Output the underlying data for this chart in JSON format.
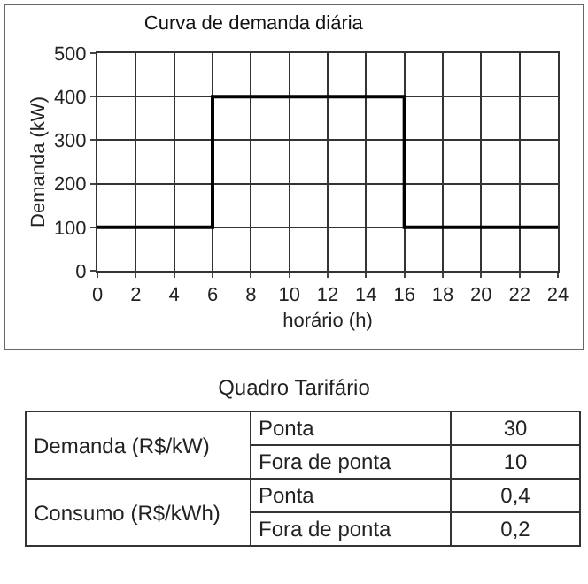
{
  "chart_data": [
    {
      "type": "step",
      "title": "Curva de demanda diária",
      "xlabel": "horário (h)",
      "ylabel": "Demanda (kW)",
      "x": [
        0,
        6,
        16,
        24
      ],
      "values": [
        100,
        400,
        100,
        100
      ],
      "color": "#000000",
      "xlim": [
        0,
        24
      ],
      "xticks": [
        0,
        2,
        4,
        6,
        8,
        10,
        12,
        14,
        16,
        18,
        20,
        22,
        24
      ],
      "ylim": [
        0,
        500
      ],
      "yticks": [
        0,
        100,
        200,
        300,
        400,
        500
      ],
      "grid": true
    },
    {
      "type": "other",
      "title": "Quadro Tarifário",
      "annotations": [
        "Demanda (R$/kW)",
        "Ponta",
        "30",
        "Fora de ponta",
        "10",
        "Consumo (R$/kWh)",
        "Ponta",
        "0,4",
        "Fora de ponta",
        "0,2"
      ]
    }
  ]
}
